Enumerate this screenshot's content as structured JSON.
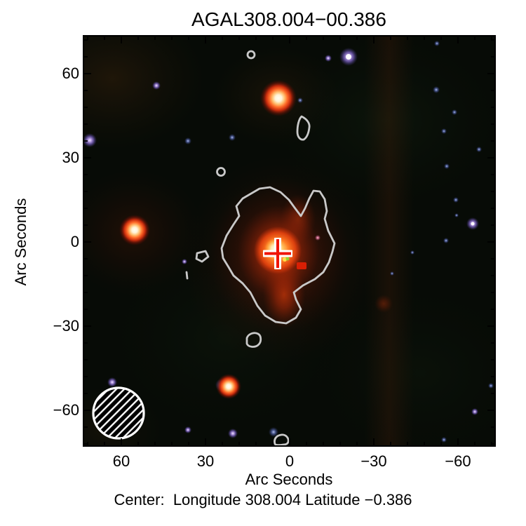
{
  "figure": {
    "title": "AGAL308.004−00.386",
    "caption": "Center:  Longitude 308.004 Latitude −0.386"
  },
  "axes": {
    "x": {
      "label": "Arc Seconds",
      "ticks": [
        {
          "value": 60,
          "label": "60"
        },
        {
          "value": 30,
          "label": "30"
        },
        {
          "value": 0,
          "label": "0"
        },
        {
          "value": -30,
          "label": "−30"
        },
        {
          "value": -60,
          "label": "−60"
        }
      ]
    },
    "y": {
      "label": "Arc Seconds",
      "ticks": [
        {
          "value": 60,
          "label": "60"
        },
        {
          "value": 30,
          "label": "30"
        },
        {
          "value": 0,
          "label": "0"
        },
        {
          "value": -30,
          "label": "−30"
        },
        {
          "value": -60,
          "label": "−60"
        }
      ]
    }
  },
  "chart_data": {
    "type": "heatmap",
    "title": "AGAL308.004−00.386",
    "xlabel": "Arc Seconds",
    "ylabel": "Arc Seconds",
    "x_ticks": [
      60,
      30,
      0,
      -30,
      -60
    ],
    "y_ticks": [
      60,
      30,
      0,
      -30,
      -60
    ],
    "minor_tick_step_arcsec": 6,
    "xlim": [
      73,
      -73
    ],
    "ylim": [
      -73,
      73
    ],
    "grid": false,
    "legend": "none",
    "description": "Three-color infrared sky image of the clump AGAL308.004-00.386 with a single gray submillimeter contour level, a red/white cross marking the clump center, and a hatched beam circle in the lower-left corner.",
    "center": {
      "longitude": 308.004,
      "latitude": -0.386
    },
    "marker": {
      "shape": "cross",
      "x_arcsec": 4.2,
      "y_arcsec": -4.1,
      "arm_span_arcsec": 11,
      "core_color": "#f01405",
      "outline_color": "#ffffff"
    },
    "beam": {
      "x_arcsec": 61,
      "y_arcsec": -61,
      "diameter_arcsec": 18,
      "style": "white hatched circle"
    },
    "contours": {
      "color": "#c9c9c9",
      "levels_shown": 1,
      "main_clump": {
        "x_arcsec": 4,
        "y_arcsec": -4,
        "approx_diameter_arcsec": 42
      },
      "islands": [
        {
          "x_arcsec": -5,
          "y_arcsec": 41
        },
        {
          "x_arcsec": 14,
          "y_arcsec": 67
        },
        {
          "x_arcsec": 24,
          "y_arcsec": 25
        },
        {
          "x_arcsec": 31,
          "y_arcsec": -5
        },
        {
          "x_arcsec": 37,
          "y_arcsec": -12
        },
        {
          "x_arcsec": 13,
          "y_arcsec": -35
        },
        {
          "x_arcsec": 2,
          "y_arcsec": -71
        }
      ]
    },
    "bright_stars": [
      {
        "x_arcsec": 4,
        "y_arcsec": 51,
        "color": "white core, orange-red halo"
      },
      {
        "x_arcsec": 55,
        "y_arcsec": 4,
        "color": "white core, red halo"
      },
      {
        "x_arcsec": 22,
        "y_arcsec": -52,
        "color": "white core, blue edge, red halo"
      },
      {
        "x_arcsec": -21,
        "y_arcsec": 66,
        "color": "white-purple"
      },
      {
        "x_arcsec": -65,
        "y_arcsec": 6,
        "color": "purple"
      }
    ],
    "faint_stars": [
      {
        "x_arcsec": 36,
        "y_arcsec": 36
      },
      {
        "x_arcsec": 20,
        "y_arcsec": 37
      },
      {
        "x_arcsec": 47,
        "y_arcsec": 56
      },
      {
        "x_arcsec": -14,
        "y_arcsec": 65
      },
      {
        "x_arcsec": -52,
        "y_arcsec": 71
      },
      {
        "x_arcsec": -52,
        "y_arcsec": 54
      },
      {
        "x_arcsec": -59,
        "y_arcsec": 46
      },
      {
        "x_arcsec": -55,
        "y_arcsec": 40
      },
      {
        "x_arcsec": -67,
        "y_arcsec": 33
      },
      {
        "x_arcsec": -56,
        "y_arcsec": 27
      },
      {
        "x_arcsec": -59,
        "y_arcsec": 15
      },
      {
        "x_arcsec": -60,
        "y_arcsec": 9
      },
      {
        "x_arcsec": -56,
        "y_arcsec": 0
      },
      {
        "x_arcsec": -44,
        "y_arcsec": -4
      },
      {
        "x_arcsec": -37,
        "y_arcsec": -11
      },
      {
        "x_arcsec": -10,
        "y_arcsec": 1
      },
      {
        "x_arcsec": 37,
        "y_arcsec": -7
      },
      {
        "x_arcsec": 63,
        "y_arcsec": -50
      },
      {
        "x_arcsec": 20,
        "y_arcsec": -68
      },
      {
        "x_arcsec": 6,
        "y_arcsec": -68
      },
      {
        "x_arcsec": 36,
        "y_arcsec": -67
      },
      {
        "x_arcsec": -66,
        "y_arcsec": -60
      },
      {
        "x_arcsec": -72,
        "y_arcsec": -51
      },
      {
        "x_arcsec": -55,
        "y_arcsec": -70
      }
    ]
  },
  "colors": {
    "page_background": "#ffffff",
    "sky_background": "#070b06",
    "frame": "#000000",
    "text": "#000000",
    "contour": "#c9c9c9",
    "marker_red": "#f01405",
    "marker_outline": "#ffffff",
    "beam_outline": "#ffffff",
    "nebula_core": "#ffcf7a",
    "nebula_mid": "#e04410",
    "nebula_outer": "#5a160a"
  }
}
